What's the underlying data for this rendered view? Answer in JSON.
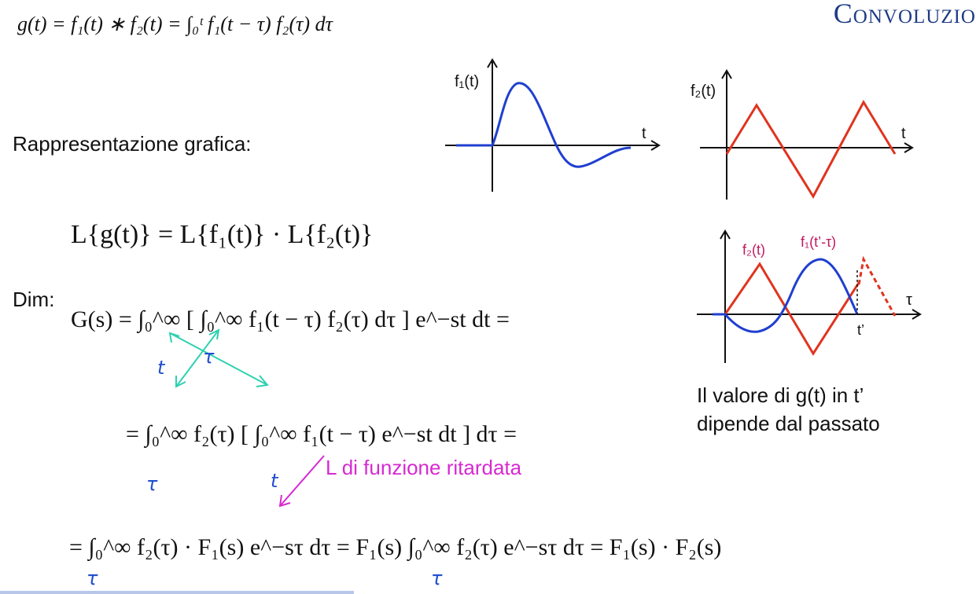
{
  "slide": {
    "title": "Convoluzio",
    "formula_def": "g(t) = f₁(t) ∗ f₂(t) = ∫₀ᵗ f₁(t − τ) f₂(τ) dτ",
    "rappresentazione_label": "Rappresentazione grafica:",
    "laplace_property": "L{g(t)} = L{f₁(t)} · L{f₂(t)}",
    "dim_label": "Dim:",
    "step1": "G(s) = ∫₀^∞ [ ∫₀^∞ f₁(t − τ) f₂(τ) dτ ] e^−st dt =",
    "step2": "= ∫₀^∞ f₂(τ) [ ∫₀^∞ f₁(t − τ) e^−st dt ] dτ =",
    "step3": "= ∫₀^∞ f₂(τ) · F₁(s) e^−sτ dτ = F₁(s) ∫₀^∞ f₂(τ) e^−sτ dτ = F₁(s) · F₂(s)",
    "annotation_ritardata": "L di funzione ritardata",
    "handwritten": {
      "t1": "t",
      "tau1": "τ",
      "tau2": "τ",
      "t2": "t",
      "tau3": "τ",
      "tau4": "τ"
    },
    "caption_line1": "Il valore di g(t) in t’",
    "caption_line2": "dipende dal passato"
  },
  "graphs": {
    "f1": {
      "ylabel": "f₁(t)",
      "xlabel": "t",
      "color": "#1f3fd0"
    },
    "f2": {
      "ylabel": "f₂(t)",
      "xlabel": "t",
      "color": "#e0341f"
    },
    "conv": {
      "label_f2": "f₂(t)",
      "label_f1": "f₁(t’-τ)",
      "xlabel": "τ",
      "tick": "t’",
      "color_f2": "#e0341f",
      "color_f1": "#1f3fd0",
      "label_color": "#c2185b"
    }
  },
  "colors": {
    "title": "#1f3b86",
    "annotation_pen": "#1f4fd0",
    "arrow_pen": "#2fd1b0",
    "magenta": "#d62ad1"
  }
}
